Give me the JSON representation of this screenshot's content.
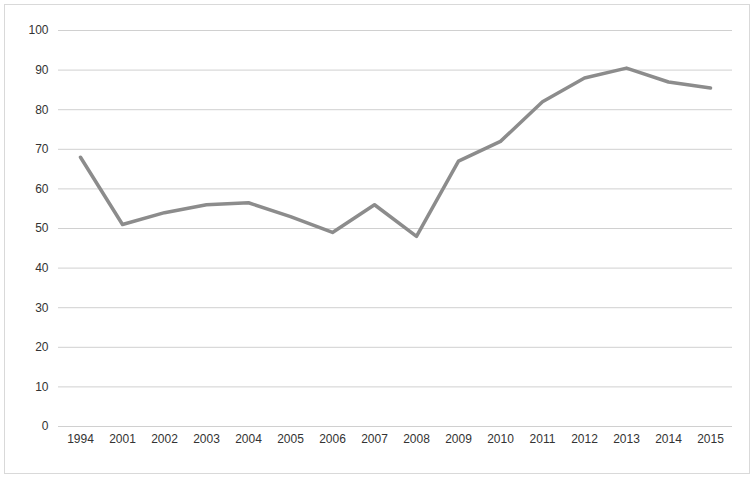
{
  "chart_data": {
    "type": "line",
    "categories": [
      "1994",
      "2001",
      "2002",
      "2003",
      "2004",
      "2005",
      "2006",
      "2007",
      "2008",
      "2009",
      "2010",
      "2011",
      "2012",
      "2013",
      "2014",
      "2015"
    ],
    "values": [
      68,
      51,
      54,
      56,
      56.5,
      53,
      49,
      56,
      48,
      67,
      72,
      82,
      88,
      90.5,
      87,
      85.5
    ],
    "color": "#8c8c8c",
    "ylim": [
      0,
      100
    ],
    "yticks": [
      0,
      10,
      20,
      30,
      40,
      50,
      60,
      70,
      80,
      90,
      100
    ],
    "grid": true
  }
}
